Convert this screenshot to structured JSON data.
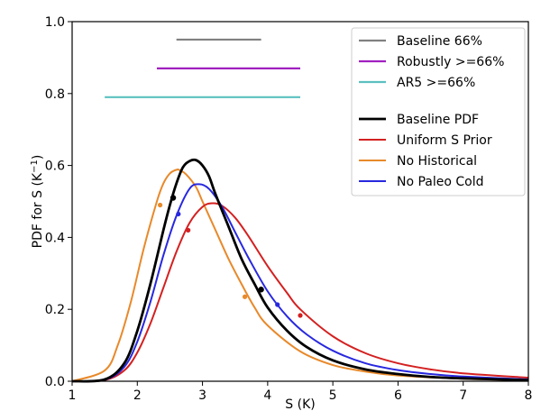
{
  "chart_data": {
    "type": "line",
    "xlabel": "S (K)",
    "ylabel": "PDF for S (K",
    "ylabel_sup": "−1",
    "ylabel_close": ")",
    "xlim": [
      1,
      8
    ],
    "ylim": [
      0,
      1.0
    ],
    "xticks": [
      1,
      2,
      3,
      4,
      5,
      6,
      7,
      8
    ],
    "xtick_labels": [
      "1",
      "2",
      "3",
      "4",
      "5",
      "6",
      "7",
      "8"
    ],
    "yticks": [
      0.0,
      0.2,
      0.4,
      0.6,
      0.8,
      1.0
    ],
    "ytick_labels": [
      "0.0",
      "0.2",
      "0.4",
      "0.6",
      "0.8",
      "1.0"
    ],
    "grid": false,
    "legend_position": "top-right",
    "ranges": [
      {
        "name": "Baseline 66%",
        "color": "#808080",
        "x_start": 2.6,
        "x_end": 3.9,
        "y": 0.95
      },
      {
        "name": "Robustly >=66%",
        "color": "#a020c0",
        "x_start": 2.3,
        "x_end": 4.5,
        "y": 0.87
      },
      {
        "name": "AR5 >=66%",
        "color": "#5bc0c0",
        "x_start": 1.5,
        "x_end": 4.5,
        "y": 0.79
      }
    ],
    "series": [
      {
        "name": "Baseline PDF",
        "color": "#000000",
        "width": 2.8,
        "x": [
          1.0,
          1.5,
          1.8,
          2.0,
          2.2,
          2.4,
          2.5,
          2.6,
          2.7,
          2.8,
          2.9,
          3.0,
          3.1,
          3.2,
          3.4,
          3.6,
          3.8,
          4.0,
          4.3,
          4.6,
          5.0,
          5.5,
          6.0,
          6.5,
          7.0,
          8.0
        ],
        "y": [
          0.0,
          0.005,
          0.05,
          0.14,
          0.27,
          0.42,
          0.49,
          0.55,
          0.595,
          0.612,
          0.615,
          0.6,
          0.57,
          0.52,
          0.43,
          0.34,
          0.27,
          0.205,
          0.14,
          0.095,
          0.058,
          0.033,
          0.02,
          0.012,
          0.008,
          0.003
        ],
        "markers": [
          {
            "x": 2.55,
            "y": 0.51
          },
          {
            "x": 3.9,
            "y": 0.255
          }
        ]
      },
      {
        "name": "Uniform S Prior",
        "color": "#d42020",
        "width": 2.0,
        "x": [
          1.0,
          1.5,
          1.8,
          2.0,
          2.2,
          2.4,
          2.6,
          2.8,
          3.0,
          3.15,
          3.3,
          3.5,
          3.7,
          4.0,
          4.3,
          4.5,
          5.0,
          5.5,
          6.0,
          6.5,
          7.0,
          8.0
        ],
        "y": [
          0.0,
          0.003,
          0.03,
          0.08,
          0.16,
          0.26,
          0.36,
          0.44,
          0.485,
          0.495,
          0.488,
          0.455,
          0.405,
          0.32,
          0.245,
          0.2,
          0.125,
          0.078,
          0.05,
          0.033,
          0.022,
          0.01
        ],
        "markers": [
          {
            "x": 2.78,
            "y": 0.42
          },
          {
            "x": 4.5,
            "y": 0.183
          }
        ]
      },
      {
        "name": "No Historical",
        "color": "#e8892a",
        "width": 2.0,
        "x": [
          1.0,
          1.5,
          1.7,
          1.9,
          2.1,
          2.3,
          2.4,
          2.5,
          2.6,
          2.65,
          2.75,
          2.9,
          3.0,
          3.2,
          3.4,
          3.6,
          3.8,
          4.0,
          4.5,
          5.0,
          5.5,
          6.0,
          7.0,
          8.0
        ],
        "y": [
          0.0,
          0.03,
          0.1,
          0.22,
          0.37,
          0.5,
          0.55,
          0.578,
          0.588,
          0.587,
          0.575,
          0.54,
          0.5,
          0.42,
          0.34,
          0.27,
          0.205,
          0.155,
          0.083,
          0.045,
          0.027,
          0.016,
          0.007,
          0.003
        ],
        "markers": [
          {
            "x": 2.35,
            "y": 0.49
          },
          {
            "x": 3.65,
            "y": 0.235
          }
        ]
      },
      {
        "name": "No Paleo Cold",
        "color": "#2828e0",
        "width": 2.0,
        "x": [
          1.0,
          1.5,
          1.8,
          2.0,
          2.2,
          2.4,
          2.6,
          2.8,
          2.95,
          3.1,
          3.3,
          3.5,
          3.7,
          4.0,
          4.3,
          4.6,
          5.0,
          5.5,
          6.0,
          6.5,
          7.0,
          8.0
        ],
        "y": [
          0.0,
          0.004,
          0.04,
          0.11,
          0.22,
          0.35,
          0.46,
          0.535,
          0.548,
          0.535,
          0.485,
          0.415,
          0.345,
          0.25,
          0.18,
          0.13,
          0.085,
          0.05,
          0.031,
          0.02,
          0.013,
          0.005
        ],
        "markers": [
          {
            "x": 2.63,
            "y": 0.465
          },
          {
            "x": 4.15,
            "y": 0.213
          }
        ]
      }
    ]
  }
}
